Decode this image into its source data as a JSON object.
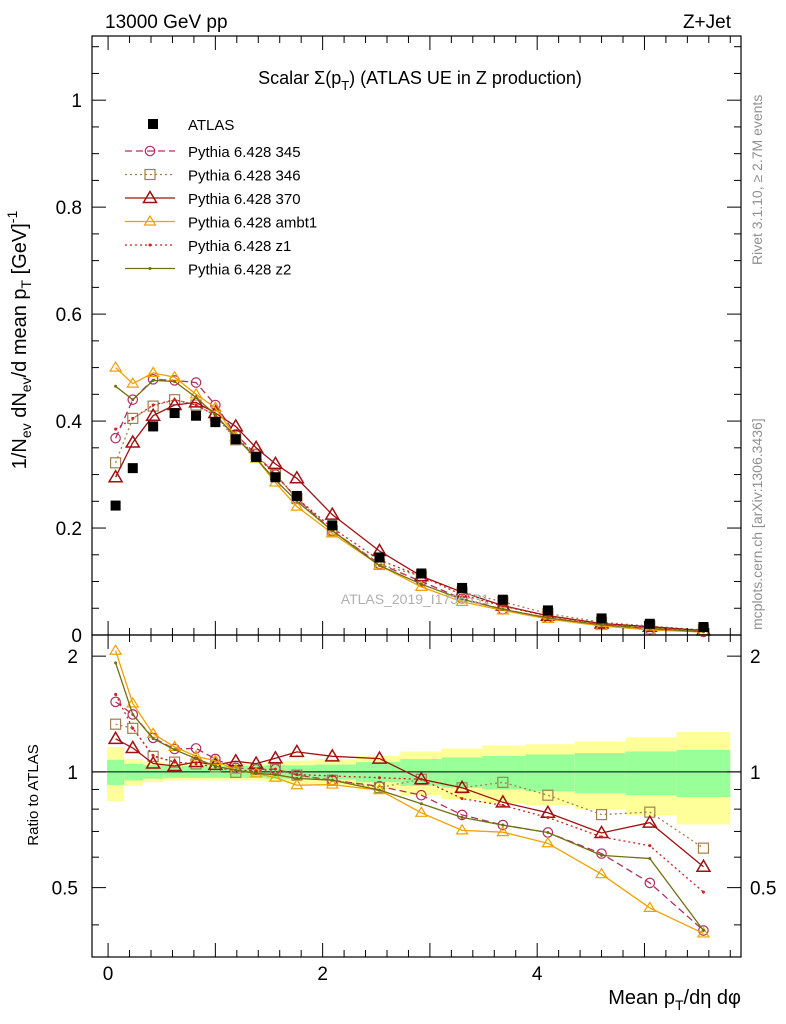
{
  "header": {
    "energy": "13000 GeV pp",
    "process": "Z+Jet"
  },
  "side": {
    "rivet": "Rivet 3.1.10, ≥ 2.7M events",
    "mcplots": "mcplots.cern.ch [arXiv:1306.3436]"
  },
  "chart_data": {
    "type": "line",
    "title": "Scalar Σ(p_T) (ATLAS UE in Z production)",
    "watermark": "ATLAS_2019_I1736531",
    "xlabel": "Mean p_T/dη dφ",
    "ylabel": "1/N_ev dN_ev/d mean p_T [GeV]^-1",
    "ratio_ylabel": "Ratio to ATLAS",
    "xlim": [
      -0.15,
      5.9
    ],
    "ylim": [
      0,
      1.12
    ],
    "ratio_ylim": [
      0.33,
      2.27
    ],
    "x_ticks": [
      "0",
      "2",
      "4"
    ],
    "y_ticks": [
      "0",
      "0.2",
      "0.4",
      "0.6",
      "0.8",
      "1"
    ],
    "ratio_ticks": [
      "0.5",
      "1",
      "2"
    ],
    "x": [
      0.07,
      0.23,
      0.42,
      0.62,
      0.82,
      1.0,
      1.19,
      1.38,
      1.56,
      1.76,
      2.09,
      2.53,
      2.92,
      3.3,
      3.68,
      4.1,
      4.6,
      5.05,
      5.55
    ],
    "atlas": [
      0.242,
      0.312,
      0.39,
      0.415,
      0.41,
      0.398,
      0.366,
      0.333,
      0.295,
      0.26,
      0.205,
      0.145,
      0.115,
      0.088,
      0.066,
      0.046,
      0.031,
      0.021,
      0.015
    ],
    "band_inner": [
      0.075,
      0.05,
      0.04,
      0.035,
      0.035,
      0.035,
      0.035,
      0.035,
      0.04,
      0.04,
      0.045,
      0.06,
      0.08,
      0.09,
      0.1,
      0.11,
      0.12,
      0.13,
      0.14
    ],
    "band_outer": [
      0.16,
      0.08,
      0.06,
      0.05,
      0.05,
      0.05,
      0.05,
      0.05,
      0.06,
      0.07,
      0.08,
      0.1,
      0.13,
      0.15,
      0.17,
      0.18,
      0.2,
      0.23,
      0.27
    ],
    "legend_data_label": "ATLAS",
    "series": [
      {
        "name": "Pythia 6.428 345",
        "color": "#b03060",
        "dash": "7,4",
        "marker": "circle",
        "values": [
          0.368,
          0.44,
          0.478,
          0.476,
          0.472,
          0.43,
          0.375,
          0.338,
          0.3,
          0.255,
          0.195,
          0.133,
          0.1,
          0.068,
          0.048,
          0.032,
          0.019,
          0.0108,
          0.0058
        ]
      },
      {
        "name": "Pythia 6.428 346",
        "color": "#a08050",
        "dash": "2,3",
        "marker": "square",
        "values": [
          0.322,
          0.405,
          0.428,
          0.44,
          0.43,
          0.41,
          0.365,
          0.338,
          0.3,
          0.255,
          0.195,
          0.132,
          0.11,
          0.08,
          0.062,
          0.04,
          0.024,
          0.0165,
          0.0095
        ]
      },
      {
        "name": "Pythia 6.428 370",
        "color": "#a01010",
        "dash": "",
        "marker": "triangle",
        "values": [
          0.295,
          0.36,
          0.41,
          0.43,
          0.435,
          0.415,
          0.39,
          0.35,
          0.32,
          0.293,
          0.225,
          0.157,
          0.11,
          0.08,
          0.055,
          0.036,
          0.0215,
          0.0155,
          0.0085
        ]
      },
      {
        "name": "Pythia 6.428 ambt1",
        "color": "#f0a000",
        "dash": "",
        "marker": "triangle-open",
        "values": [
          0.5,
          0.47,
          0.49,
          0.482,
          0.45,
          0.425,
          0.37,
          0.33,
          0.285,
          0.24,
          0.19,
          0.13,
          0.09,
          0.062,
          0.046,
          0.03,
          0.0168,
          0.0093,
          0.0057
        ]
      },
      {
        "name": "Pythia 6.428 z1",
        "color": "#d02020",
        "dash": "2,3",
        "marker": "dot",
        "values": [
          0.385,
          0.405,
          0.43,
          0.44,
          0.43,
          0.41,
          0.37,
          0.335,
          0.3,
          0.256,
          0.2,
          0.14,
          0.11,
          0.075,
          0.054,
          0.035,
          0.021,
          0.0135,
          0.0073
        ]
      },
      {
        "name": "Pythia 6.428 z2",
        "color": "#707010",
        "dash": "",
        "marker": "dot",
        "values": [
          0.465,
          0.44,
          0.476,
          0.474,
          0.444,
          0.412,
          0.37,
          0.33,
          0.29,
          0.25,
          0.195,
          0.13,
          0.095,
          0.067,
          0.048,
          0.032,
          0.0188,
          0.0125,
          0.0058
        ]
      }
    ]
  }
}
